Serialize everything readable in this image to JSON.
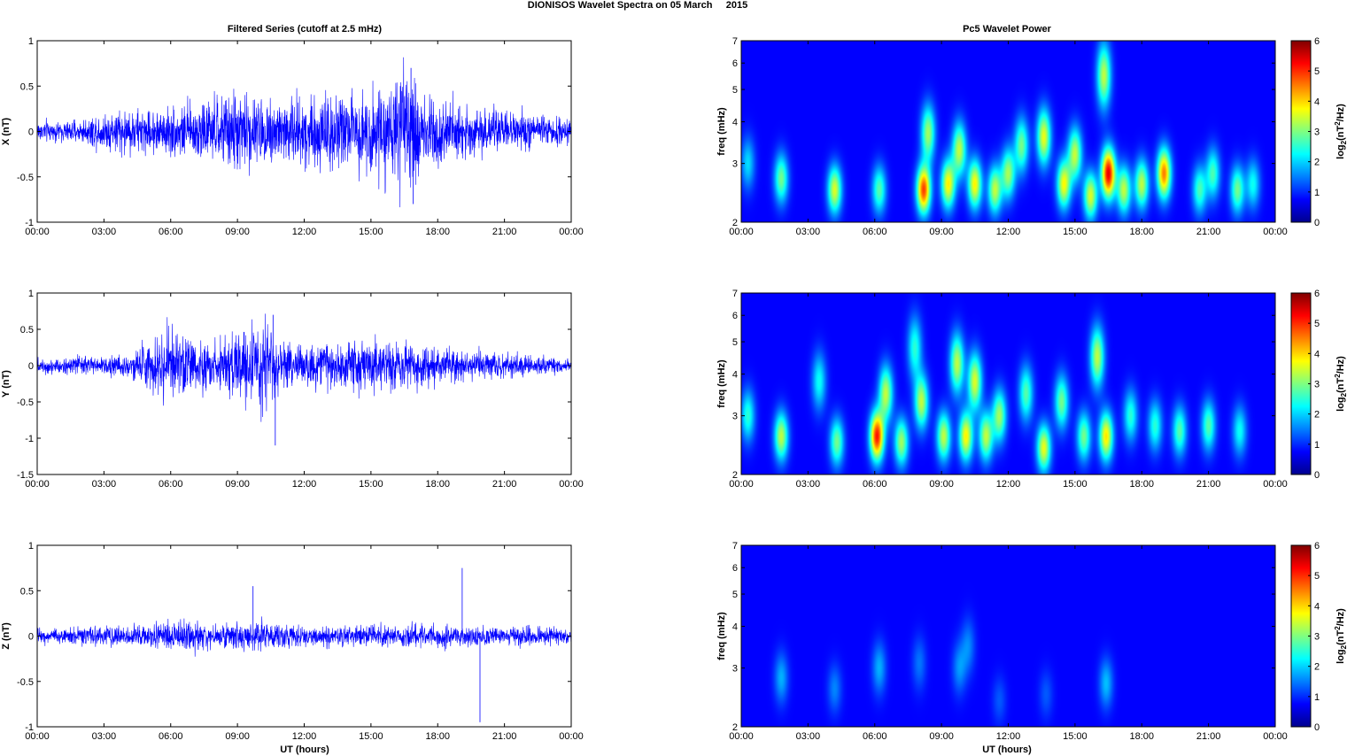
{
  "figure": {
    "suptitle": "DIONISOS Wavelet Spectra on 05 March     2015",
    "left_title": "Filtered Series (cutoff at 2.5 mHz)",
    "right_title": "Pc5 Wavelet Power",
    "xlabel": "UT (hours)"
  },
  "chart_data": [
    {
      "type": "line",
      "panel": "X",
      "ylabel": "X (nT)",
      "x_ticks": [
        "00:00",
        "03:00",
        "06:00",
        "09:00",
        "12:00",
        "15:00",
        "18:00",
        "21:00",
        "00:00"
      ],
      "xlim_hours": [
        0,
        24
      ],
      "ylim": [
        -1,
        1
      ],
      "y_ticks": [
        1,
        0.5,
        0,
        -0.5,
        -1
      ],
      "series_color": "#0000ff",
      "envelope": {
        "hours": [
          0,
          1,
          2,
          3,
          4,
          5,
          6,
          7,
          8,
          9,
          10,
          11,
          12,
          13,
          14,
          15,
          16,
          17,
          18,
          19,
          20,
          21,
          22,
          23,
          24
        ],
        "amplitude": [
          0.13,
          0.1,
          0.12,
          0.2,
          0.25,
          0.22,
          0.25,
          0.3,
          0.35,
          0.42,
          0.35,
          0.4,
          0.38,
          0.42,
          0.4,
          0.45,
          0.55,
          0.6,
          0.4,
          0.3,
          0.25,
          0.2,
          0.2,
          0.15,
          0.13
        ]
      },
      "spikes": [
        {
          "hour": 16.9,
          "value": -0.8
        },
        {
          "hour": 16.8,
          "value": 0.7
        }
      ]
    },
    {
      "type": "line",
      "panel": "Y",
      "ylabel": "Y (nT)",
      "x_ticks": [
        "00:00",
        "03:00",
        "06:00",
        "09:00",
        "12:00",
        "15:00",
        "18:00",
        "21:00",
        "00:00"
      ],
      "xlim_hours": [
        0,
        24
      ],
      "ylim": [
        -1.5,
        1
      ],
      "y_ticks": [
        1,
        0.5,
        0,
        -0.5,
        -1,
        -1.5
      ],
      "series_color": "#0000ff",
      "envelope": {
        "hours": [
          0,
          1,
          2,
          3,
          4,
          5,
          6,
          7,
          8,
          9,
          10,
          11,
          12,
          13,
          14,
          15,
          16,
          17,
          18,
          19,
          20,
          21,
          22,
          23,
          24
        ],
        "amplitude": [
          0.1,
          0.12,
          0.12,
          0.12,
          0.15,
          0.3,
          0.5,
          0.35,
          0.3,
          0.5,
          0.6,
          0.35,
          0.3,
          0.3,
          0.3,
          0.35,
          0.35,
          0.3,
          0.25,
          0.2,
          0.18,
          0.15,
          0.15,
          0.12,
          0.1
        ]
      },
      "spikes": [
        {
          "hour": 10.7,
          "value": -1.1
        },
        {
          "hour": 10.6,
          "value": 0.7
        }
      ]
    },
    {
      "type": "line",
      "panel": "Z",
      "ylabel": "Z (nT)",
      "x_ticks": [
        "00:00",
        "03:00",
        "06:00",
        "09:00",
        "12:00",
        "15:00",
        "18:00",
        "21:00",
        "00:00"
      ],
      "xlim_hours": [
        0,
        24
      ],
      "ylim": [
        -1,
        1
      ],
      "y_ticks": [
        1,
        0.5,
        0,
        -0.5,
        -1
      ],
      "series_color": "#0000ff",
      "envelope": {
        "hours": [
          0,
          1,
          2,
          3,
          4,
          5,
          6,
          7,
          8,
          9,
          10,
          11,
          12,
          13,
          14,
          15,
          16,
          17,
          18,
          19,
          20,
          21,
          22,
          23,
          24
        ],
        "amplitude": [
          0.08,
          0.08,
          0.1,
          0.1,
          0.12,
          0.12,
          0.15,
          0.15,
          0.13,
          0.15,
          0.17,
          0.13,
          0.12,
          0.12,
          0.12,
          0.12,
          0.12,
          0.12,
          0.12,
          0.1,
          0.1,
          0.1,
          0.1,
          0.08,
          0.08
        ]
      },
      "spikes": [
        {
          "hour": 9.7,
          "value": 0.55
        },
        {
          "hour": 19.1,
          "value": 0.75
        },
        {
          "hour": 19.9,
          "value": -0.95
        }
      ]
    },
    {
      "type": "heatmap",
      "panel": "X",
      "ylabel": "freq (mHz)",
      "cbar_label": "log2(nT2/Hz)",
      "x_ticks": [
        "00:00",
        "03:00",
        "06:00",
        "09:00",
        "12:00",
        "15:00",
        "18:00",
        "21:00",
        "00:00"
      ],
      "xlim_hours": [
        0,
        24
      ],
      "y_scale": "log",
      "ylim_mhz": [
        2,
        7
      ],
      "y_ticks": [
        2,
        3,
        4,
        5,
        6,
        7
      ],
      "clim": [
        0,
        6
      ],
      "cbar_ticks": [
        0,
        1,
        2,
        3,
        4,
        5,
        6
      ],
      "colormap": "jet",
      "blobs": [
        {
          "t": 0.3,
          "f": 3.0,
          "p": 1.5
        },
        {
          "t": 1.8,
          "f": 2.7,
          "p": 2.5
        },
        {
          "t": 4.2,
          "f": 2.5,
          "p": 3.2
        },
        {
          "t": 6.2,
          "f": 2.5,
          "p": 2.3
        },
        {
          "t": 8.2,
          "f": 2.5,
          "p": 4.7
        },
        {
          "t": 8.4,
          "f": 3.7,
          "p": 2.8
        },
        {
          "t": 9.3,
          "f": 2.6,
          "p": 3.5
        },
        {
          "t": 9.8,
          "f": 3.3,
          "p": 3.0
        },
        {
          "t": 10.5,
          "f": 2.6,
          "p": 3.5
        },
        {
          "t": 11.4,
          "f": 2.5,
          "p": 3.0
        },
        {
          "t": 12.0,
          "f": 2.8,
          "p": 2.8
        },
        {
          "t": 12.6,
          "f": 3.4,
          "p": 2.5
        },
        {
          "t": 13.6,
          "f": 3.6,
          "p": 3.3
        },
        {
          "t": 14.5,
          "f": 2.6,
          "p": 3.4
        },
        {
          "t": 15.0,
          "f": 3.2,
          "p": 3.0
        },
        {
          "t": 15.7,
          "f": 2.4,
          "p": 3.2
        },
        {
          "t": 16.5,
          "f": 2.8,
          "p": 5.3
        },
        {
          "t": 16.3,
          "f": 5.5,
          "p": 3.0
        },
        {
          "t": 17.2,
          "f": 2.5,
          "p": 3.0
        },
        {
          "t": 18.0,
          "f": 2.6,
          "p": 3.0
        },
        {
          "t": 19.0,
          "f": 2.8,
          "p": 4.3
        },
        {
          "t": 20.6,
          "f": 2.5,
          "p": 2.2
        },
        {
          "t": 21.2,
          "f": 2.8,
          "p": 2.2
        },
        {
          "t": 22.3,
          "f": 2.5,
          "p": 2.5
        },
        {
          "t": 23.0,
          "f": 2.6,
          "p": 1.8
        }
      ]
    },
    {
      "type": "heatmap",
      "panel": "Y",
      "ylabel": "freq (mHz)",
      "cbar_label": "log2(nT2/Hz)",
      "x_ticks": [
        "00:00",
        "03:00",
        "06:00",
        "09:00",
        "12:00",
        "15:00",
        "18:00",
        "21:00",
        "00:00"
      ],
      "xlim_hours": [
        0,
        24
      ],
      "y_scale": "log",
      "ylim_mhz": [
        2,
        7
      ],
      "y_ticks": [
        2,
        3,
        4,
        5,
        6,
        7
      ],
      "clim": [
        0,
        6
      ],
      "cbar_ticks": [
        0,
        1,
        2,
        3,
        4,
        5,
        6
      ],
      "colormap": "jet",
      "blobs": [
        {
          "t": 0.3,
          "f": 3.0,
          "p": 2.0
        },
        {
          "t": 1.8,
          "f": 2.6,
          "p": 3.0
        },
        {
          "t": 3.5,
          "f": 3.8,
          "p": 1.8
        },
        {
          "t": 4.3,
          "f": 2.5,
          "p": 2.5
        },
        {
          "t": 6.1,
          "f": 2.6,
          "p": 5.0
        },
        {
          "t": 6.5,
          "f": 3.5,
          "p": 3.0
        },
        {
          "t": 7.2,
          "f": 2.5,
          "p": 2.8
        },
        {
          "t": 7.8,
          "f": 4.8,
          "p": 2.0
        },
        {
          "t": 8.1,
          "f": 3.3,
          "p": 3.0
        },
        {
          "t": 9.1,
          "f": 2.6,
          "p": 3.0
        },
        {
          "t": 9.7,
          "f": 4.3,
          "p": 3.0
        },
        {
          "t": 10.1,
          "f": 2.6,
          "p": 3.5
        },
        {
          "t": 10.5,
          "f": 3.8,
          "p": 3.2
        },
        {
          "t": 11.0,
          "f": 2.6,
          "p": 3.0
        },
        {
          "t": 11.6,
          "f": 3.0,
          "p": 2.8
        },
        {
          "t": 12.8,
          "f": 3.5,
          "p": 2.3
        },
        {
          "t": 13.6,
          "f": 2.4,
          "p": 3.3
        },
        {
          "t": 14.4,
          "f": 3.3,
          "p": 2.5
        },
        {
          "t": 15.4,
          "f": 2.6,
          "p": 2.5
        },
        {
          "t": 16.0,
          "f": 4.5,
          "p": 3.0
        },
        {
          "t": 16.4,
          "f": 2.6,
          "p": 3.6
        },
        {
          "t": 17.5,
          "f": 3.0,
          "p": 2.0
        },
        {
          "t": 18.6,
          "f": 2.8,
          "p": 2.0
        },
        {
          "t": 19.7,
          "f": 2.7,
          "p": 2.3
        },
        {
          "t": 21.0,
          "f": 2.8,
          "p": 2.3
        },
        {
          "t": 22.4,
          "f": 2.7,
          "p": 1.8
        }
      ]
    },
    {
      "type": "heatmap",
      "panel": "Z",
      "ylabel": "freq (mHz)",
      "cbar_label": "log2(nT2/Hz)",
      "x_ticks": [
        "00:00",
        "03:00",
        "06:00",
        "09:00",
        "12:00",
        "15:00",
        "18:00",
        "21:00",
        "00:00"
      ],
      "xlim_hours": [
        0,
        24
      ],
      "y_scale": "log",
      "ylim_mhz": [
        2,
        7
      ],
      "y_ticks": [
        2,
        3,
        4,
        5,
        6,
        7
      ],
      "clim": [
        0,
        6
      ],
      "cbar_ticks": [
        0,
        1,
        2,
        3,
        4,
        5,
        6
      ],
      "colormap": "jet",
      "blobs": [
        {
          "t": 1.8,
          "f": 2.8,
          "p": 1.2
        },
        {
          "t": 4.2,
          "f": 2.6,
          "p": 0.9
        },
        {
          "t": 6.2,
          "f": 3.0,
          "p": 1.2
        },
        {
          "t": 8.0,
          "f": 3.1,
          "p": 0.8
        },
        {
          "t": 9.8,
          "f": 3.0,
          "p": 1.0
        },
        {
          "t": 10.2,
          "f": 3.5,
          "p": 0.9
        },
        {
          "t": 11.6,
          "f": 2.4,
          "p": 0.6
        },
        {
          "t": 13.7,
          "f": 2.5,
          "p": 0.6
        },
        {
          "t": 16.4,
          "f": 2.7,
          "p": 1.3
        }
      ]
    }
  ]
}
